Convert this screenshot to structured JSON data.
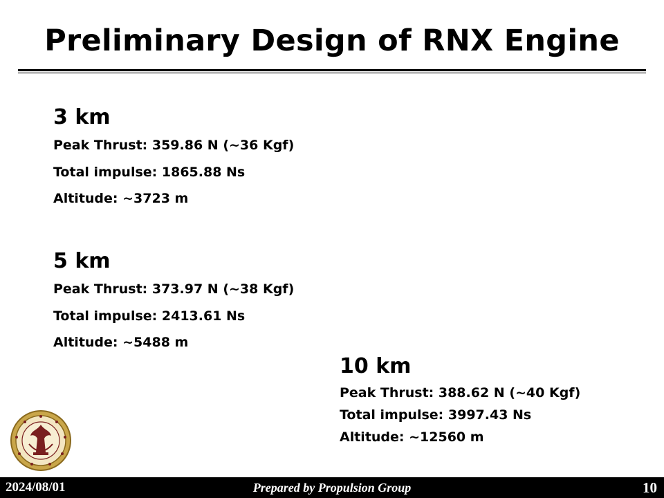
{
  "slide": {
    "title": "Preliminary Design of RNX Engine",
    "sections": [
      {
        "heading": "3 km",
        "lines": [
          "Peak Thrust: 359.86 N (~36 Kgf)",
          "Total impulse: 1865.88 Ns",
          "Altitude: ~3723 m"
        ]
      },
      {
        "heading": "5 km",
        "lines": [
          "Peak Thrust: 373.97 N (~38 Kgf)",
          "Total impulse: 2413.61 Ns",
          "Altitude: ~5488 m"
        ]
      },
      {
        "heading": "10 km",
        "lines": [
          "Peak Thrust: 388.62 N (~40 Kgf)",
          "Total impulse: 3997.43 Ns",
          "Altitude: ~12560 m"
        ]
      }
    ]
  },
  "footer": {
    "date": "2024/08/01",
    "prepared_by": "Prepared by Propulsion Group",
    "page_number": "10"
  },
  "logo": {
    "icon": "university-seal-icon"
  },
  "colors": {
    "seal_ring": "#b08a2e",
    "seal_inner": "#7a1f1f",
    "footer_bg": "#000000"
  }
}
